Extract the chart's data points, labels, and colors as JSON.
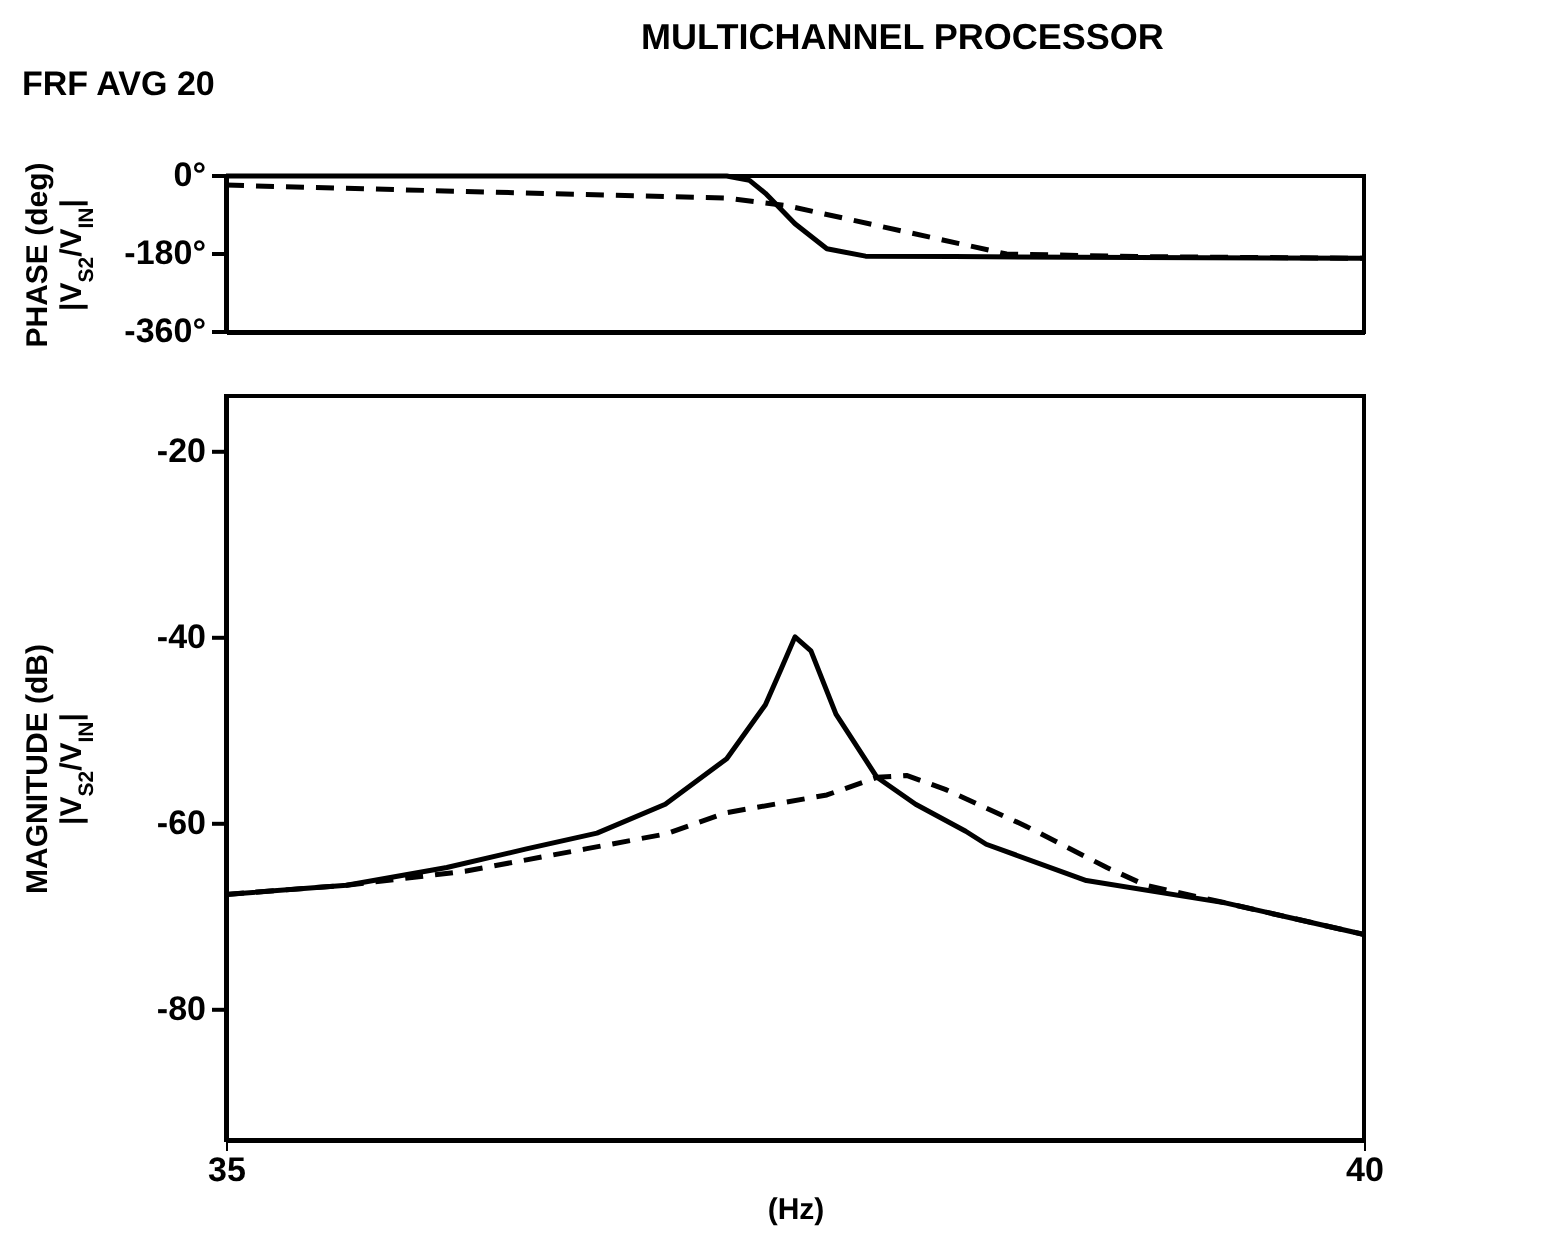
{
  "chart_data": [
    {
      "type": "line",
      "title": "MULTICHANNEL PROCESSOR",
      "annotations": [
        "FRF AVG 20"
      ],
      "ylabel": "PHASE (deg) |V$_{S2}$/V$_{IN}$|",
      "xlim": [
        35,
        40
      ],
      "ylim": [
        -360,
        0
      ],
      "yticks": [
        {
          "value": 0,
          "label": "0°"
        },
        {
          "value": -180,
          "label": "-180°"
        },
        {
          "value": -360,
          "label": "-360°"
        }
      ],
      "tick_labels": "y",
      "grid": false,
      "series": [
        {
          "color": "#000000",
          "line_style": "solid",
          "x": [
            35,
            36,
            37,
            37.2,
            37.3,
            37.37,
            37.5,
            37.64,
            37.81,
            38.2,
            39,
            40
          ],
          "values": [
            0,
            0,
            0,
            0,
            -10,
            -40,
            -110,
            -168,
            -185,
            -186,
            -188,
            -190
          ]
        },
        {
          "color": "#000000",
          "line_style": "dashed",
          "x": [
            35,
            36,
            37.2,
            37.46,
            38.43,
            39,
            40
          ],
          "values": [
            -21,
            -35,
            -51,
            -68,
            -180,
            -186,
            -190
          ]
        }
      ]
    },
    {
      "type": "line",
      "xlabel": "(Hz)",
      "ylabel": "MAGNITUDE (dB) |V$_{S2}$/V$_{IN}$|",
      "xlim": [
        35,
        40
      ],
      "ylim": [
        -94,
        -14
      ],
      "xticks": [
        35,
        40
      ],
      "yticks": [
        -20,
        -40,
        -60,
        -80
      ],
      "grid": false,
      "series": [
        {
          "color": "#000000",
          "line_style": "solid",
          "x": [
            35,
            35.53,
            35.97,
            36.32,
            36.63,
            36.93,
            37.2,
            37.37,
            37.44,
            37.5,
            37.57,
            37.68,
            37.86,
            38.03,
            38.25,
            38.34,
            38.78,
            39.39,
            40
          ],
          "values": [
            -67.6,
            -66.6,
            -64.7,
            -62.7,
            -61,
            -57.9,
            -53,
            -47.2,
            -43.3,
            -39.9,
            -41.4,
            -48.2,
            -55,
            -57.9,
            -60.8,
            -62.2,
            -66.1,
            -68.5,
            -71.9
          ]
        },
        {
          "color": "#000000",
          "line_style": "dashed",
          "x": [
            35,
            35.53,
            36.05,
            36.58,
            36.93,
            37.2,
            37.64,
            37.86,
            37.99,
            38.16,
            38.51,
            38.87,
            39.04,
            39.39,
            40
          ],
          "values": [
            -67.6,
            -66.6,
            -65.1,
            -62.7,
            -61.1,
            -58.8,
            -56.9,
            -55,
            -54.8,
            -56.3,
            -60.2,
            -64.7,
            -66.6,
            -68.5,
            -71.9
          ]
        }
      ]
    }
  ]
}
